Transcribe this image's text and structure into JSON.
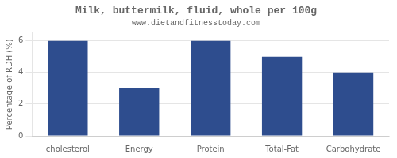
{
  "chart_data": {
    "type": "bar",
    "title": "Milk, buttermilk, fluid, whole per 100g",
    "subtitle": "www.dietandfitnesstoday.com",
    "ylabel": "Percentage of RDH (%)",
    "categories": [
      "cholesterol",
      "Energy",
      "Protein",
      "Total-Fat",
      "Carbohydrate"
    ],
    "values": [
      6,
      3,
      6,
      5,
      4
    ],
    "color": "#2e4d8e",
    "ylim": [
      0,
      6.5
    ],
    "yticks": [
      0,
      2,
      4,
      6
    ],
    "grid": true
  }
}
